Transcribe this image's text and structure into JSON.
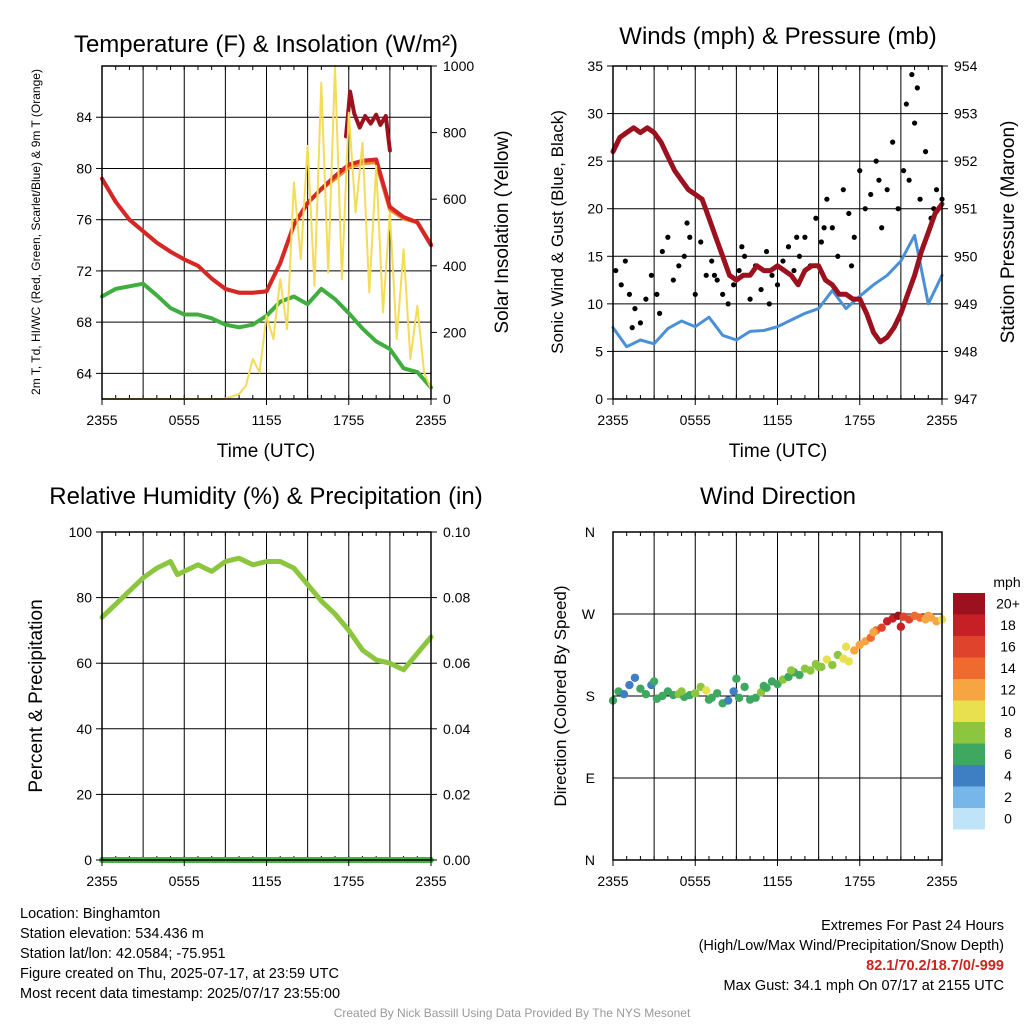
{
  "chart_data": [
    {
      "id": "temp",
      "type": "line",
      "title": "Temperature (F) & Insolation (W/m²)",
      "xlabel": "Time (UTC)",
      "ylabel": "2m T, Td, HI/WC (Red, Green, Scarlet/Blue) & 9m T (Orange)",
      "ylabel2": "Solar Insolation (Yellow)",
      "x_ticks": [
        "2355",
        "0555",
        "1155",
        "1755",
        "2355"
      ],
      "xlim": [
        0,
        24
      ],
      "ylim": [
        62,
        88
      ],
      "y_ticks": [
        64,
        68,
        72,
        76,
        80,
        84
      ],
      "ylim2": [
        0,
        1000
      ],
      "y2_ticks": [
        0,
        200,
        400,
        600,
        800,
        1000
      ],
      "grid": true,
      "series": [
        {
          "color": "#f28c28",
          "width": 4,
          "x": [
            0,
            1,
            2,
            3,
            4,
            5,
            6,
            7,
            8,
            9,
            10,
            11,
            12,
            13,
            14,
            15,
            16,
            17,
            18,
            19,
            20,
            21,
            22,
            23,
            24
          ],
          "y": [
            79.2,
            77.4,
            76,
            75.1,
            74.2,
            73.5,
            72.9,
            72.4,
            71.4,
            70.6,
            70.3,
            70.3,
            70.4,
            72.6,
            75.6,
            77.3,
            78.4,
            79.2,
            80.1,
            80.4,
            80.5,
            76.8,
            76.1,
            75.8,
            74.1
          ]
        },
        {
          "color": "#d62728",
          "width": 4,
          "x": [
            0,
            1,
            2,
            3,
            4,
            5,
            6,
            7,
            8,
            9,
            10,
            11,
            12,
            13,
            14,
            15,
            16,
            17,
            18,
            19,
            20,
            21,
            22,
            23,
            24
          ],
          "y": [
            79.2,
            77.4,
            76,
            75.1,
            74.2,
            73.5,
            72.9,
            72.4,
            71.4,
            70.6,
            70.3,
            70.3,
            70.4,
            72.6,
            75.6,
            77.3,
            78.4,
            79.4,
            80.3,
            80.6,
            80.7,
            77,
            76.2,
            75.8,
            74
          ]
        },
        {
          "color": "#9b111e",
          "width": 4,
          "x": [
            17.8,
            18.1,
            18.4,
            18.8,
            19.2,
            19.6,
            20,
            20.3,
            20.7,
            21
          ],
          "y": [
            82.5,
            86,
            84.3,
            83.2,
            84.1,
            83.5,
            84.2,
            83.4,
            84.1,
            81.4
          ]
        },
        {
          "color": "#3fae3f",
          "width": 4,
          "x": [
            0,
            1,
            2,
            3,
            4,
            5,
            6,
            7,
            8,
            9,
            10,
            11,
            12,
            13,
            14,
            15,
            16,
            17,
            18,
            19,
            20,
            21,
            22,
            23,
            24
          ],
          "y": [
            70,
            70.6,
            70.8,
            71,
            70.1,
            69.1,
            68.6,
            68.6,
            68.3,
            67.8,
            67.6,
            67.8,
            68.5,
            69.6,
            70,
            69.4,
            70.6,
            69.8,
            68.7,
            67.5,
            66.5,
            65.9,
            64.4,
            64.1,
            62.9
          ]
        },
        {
          "color": "#f3dc58",
          "width": 2,
          "axis": "right",
          "x": [
            0,
            4,
            8.8,
            9.3,
            10,
            10.5,
            11,
            11.5,
            12,
            12.5,
            13,
            13.5,
            14,
            14.5,
            15,
            15.5,
            16,
            16.5,
            17,
            17.5,
            18,
            18.5,
            19,
            19.5,
            20,
            20.5,
            21,
            21.5,
            22,
            22.5,
            23,
            23.5,
            24
          ],
          "y": [
            0,
            0,
            0,
            5,
            15,
            40,
            120,
            80,
            250,
            180,
            360,
            210,
            650,
            420,
            760,
            340,
            950,
            380,
            1000,
            360,
            860,
            560,
            770,
            320,
            700,
            260,
            560,
            180,
            450,
            120,
            280,
            80,
            30
          ]
        }
      ]
    },
    {
      "id": "wind",
      "type": "line",
      "title": "Winds (mph) & Pressure (mb)",
      "xlabel": "Time (UTC)",
      "ylabel": "Sonic Wind & Gust (Blue, Black)",
      "ylabel2": "Station Pressure (Maroon)",
      "x_ticks": [
        "2355",
        "0555",
        "1155",
        "1755",
        "2355"
      ],
      "xlim": [
        0,
        24
      ],
      "ylim": [
        0,
        35
      ],
      "y_ticks": [
        0,
        5,
        10,
        15,
        20,
        25,
        30,
        35
      ],
      "ylim2": [
        947,
        954
      ],
      "y2_ticks": [
        947,
        948,
        949,
        950,
        951,
        952,
        953,
        954
      ],
      "grid": true,
      "series": [
        {
          "color": "#4a90d9",
          "width": 3,
          "x": [
            0,
            1,
            2,
            3,
            4,
            5,
            6,
            7,
            8,
            9,
            10,
            11,
            12,
            13,
            14,
            15,
            16,
            17,
            18,
            19,
            20,
            21,
            22,
            23,
            24
          ],
          "y": [
            7.5,
            5.5,
            6.2,
            5.8,
            7.4,
            8.2,
            7.6,
            8.6,
            6.7,
            6.2,
            7.1,
            7.2,
            7.6,
            8.3,
            9,
            9.5,
            11.4,
            9.5,
            10.8,
            12,
            13,
            14.5,
            17.2,
            10,
            13
          ]
        },
        {
          "color": "#000000",
          "type": "scatter",
          "r": 2.6,
          "x": [
            0.2,
            0.6,
            0.9,
            1.2,
            1.6,
            2,
            2.4,
            2.8,
            3.2,
            3.6,
            4,
            4.4,
            4.8,
            5.2,
            5.6,
            6,
            6.4,
            6.8,
            7.2,
            7.6,
            8,
            8.4,
            8.8,
            9.2,
            9.6,
            10,
            10.4,
            10.8,
            11.2,
            11.6,
            12,
            12.4,
            12.8,
            13.2,
            13.6,
            14,
            14.4,
            14.8,
            15.2,
            15.6,
            16,
            16.4,
            16.8,
            17.2,
            17.6,
            18,
            18.4,
            18.8,
            19.2,
            19.6,
            20,
            20.4,
            20.8,
            21.2,
            21.6,
            22,
            22.4,
            22.8,
            23.2,
            23.6,
            24,
            1.4,
            3.4,
            5.4,
            7.4,
            9.4,
            11.4,
            13.4,
            15.4,
            17.4,
            19.4,
            21.4,
            23.4,
            21.8,
            22.2
          ],
          "y": [
            13.5,
            12,
            14.5,
            11,
            9.5,
            8,
            10.5,
            13,
            11,
            15.5,
            17,
            12.5,
            14,
            15,
            17,
            11,
            16.5,
            13,
            14.5,
            12.5,
            11,
            10,
            12,
            13.5,
            15,
            10.5,
            14,
            11.5,
            15.5,
            13,
            12,
            14.5,
            16,
            13.5,
            15,
            17,
            14,
            19,
            16.5,
            21,
            18,
            15,
            22,
            19.5,
            17,
            24,
            20,
            21.5,
            25,
            18,
            22,
            27,
            20,
            24,
            23,
            29,
            21,
            26,
            19,
            22,
            21,
            7.5,
            9,
            18.5,
            13,
            16,
            10,
            17,
            18,
            14,
            23,
            31,
            20,
            34.1,
            32.7
          ]
        },
        {
          "color": "#9b111e",
          "width": 5,
          "axis": "right",
          "x": [
            0,
            0.5,
            1,
            1.5,
            2,
            2.5,
            3,
            3.5,
            4,
            4.5,
            5,
            5.5,
            6,
            6.5,
            7,
            7.5,
            8,
            8.5,
            9,
            9.5,
            10,
            10.5,
            11,
            11.5,
            12,
            12.5,
            13,
            13.5,
            14,
            14.5,
            15,
            15.5,
            16,
            16.5,
            17,
            17.5,
            18,
            18.5,
            19,
            19.5,
            20,
            20.5,
            21,
            21.5,
            22,
            22.5,
            23,
            23.5,
            24
          ],
          "y": [
            952.2,
            952.5,
            952.6,
            952.7,
            952.6,
            952.7,
            952.6,
            952.4,
            952.1,
            951.8,
            951.6,
            951.4,
            951.3,
            951.2,
            950.8,
            950.4,
            950,
            949.6,
            949.5,
            949.6,
            949.6,
            949.8,
            949.7,
            949.7,
            949.8,
            949.7,
            949.6,
            949.4,
            949.7,
            949.8,
            949.8,
            949.5,
            949.4,
            949.2,
            949.2,
            949.1,
            949.1,
            948.8,
            948.4,
            948.2,
            948.3,
            948.5,
            948.8,
            949.2,
            949.6,
            950.1,
            950.5,
            950.9,
            951.1
          ]
        }
      ]
    },
    {
      "id": "rh",
      "type": "line",
      "title": "Relative Humidity (%) & Precipitation (in)",
      "xlabel": "",
      "ylabel": "Percent & Precipitation",
      "x_ticks": [
        "2355",
        "0555",
        "1155",
        "1755",
        "2355"
      ],
      "xlim": [
        0,
        24
      ],
      "ylim": [
        0,
        100
      ],
      "y_ticks": [
        0,
        20,
        40,
        60,
        80,
        100
      ],
      "ylim2": [
        0,
        0.1
      ],
      "y2_ticks": [
        "0.00",
        "0.02",
        "0.04",
        "0.06",
        "0.08",
        "0.10"
      ],
      "grid": true,
      "series": [
        {
          "color": "#8cc63f",
          "width": 5,
          "x": [
            0,
            1,
            2,
            3,
            4,
            5,
            5.5,
            6,
            7,
            8,
            9,
            10,
            11,
            12,
            13,
            14,
            15,
            16,
            17,
            18,
            19,
            20,
            21,
            22,
            23,
            24
          ],
          "y": [
            74,
            78,
            82,
            86,
            89,
            91,
            87,
            88,
            90,
            88,
            91,
            92,
            90,
            91,
            91,
            89,
            84,
            79,
            75,
            70,
            64,
            61,
            60,
            58,
            63,
            68
          ]
        },
        {
          "color": "#2e8b2e",
          "width": 5,
          "axis": "right",
          "x": [
            0,
            24
          ],
          "y": [
            0,
            0
          ]
        },
        {
          "color": "#47b047",
          "width": 6,
          "x": [
            0,
            24
          ],
          "y": [
            0,
            0
          ]
        }
      ]
    },
    {
      "id": "wdir",
      "type": "scatter",
      "title": "Wind Direction",
      "xlabel": "",
      "ylabel": "Direction (Colored By Speed)",
      "x_ticks": [
        "2355",
        "0555",
        "1155",
        "1755",
        "2355"
      ],
      "xlim": [
        0,
        24
      ],
      "y_tick_labels": [
        "N",
        "E",
        "S",
        "W",
        "N"
      ],
      "ylim": [
        0,
        360
      ],
      "legend_title": "mph",
      "legend_labels": [
        "20+",
        "18",
        "16",
        "14",
        "12",
        "10",
        "8",
        "6",
        "4",
        "2",
        "0"
      ],
      "legend_colors": [
        "#9b111e",
        "#c62026",
        "#e0432b",
        "#ef6a2e",
        "#f7a542",
        "#e8e04f",
        "#8cc63f",
        "#3fa860",
        "#3d7fc2",
        "#76b6e8",
        "#bfe3f7"
      ],
      "points": {
        "x": [
          0,
          0.4,
          0.8,
          1.2,
          1.6,
          2,
          2.4,
          2.8,
          3.2,
          3.6,
          4,
          4.4,
          4.8,
          5.2,
          5.6,
          6,
          6.4,
          6.8,
          7.2,
          7.6,
          8,
          8.4,
          8.8,
          9.2,
          9.6,
          10,
          10.4,
          10.8,
          11.2,
          11.6,
          12,
          12.4,
          12.8,
          13.2,
          13.6,
          14,
          14.4,
          14.8,
          15.2,
          15.6,
          16,
          16.4,
          16.8,
          17.2,
          17.6,
          18,
          18.4,
          18.8,
          19.2,
          19.6,
          20,
          20.4,
          20.8,
          21.2,
          21.6,
          22,
          22.4,
          22.8,
          23.2,
          23.6,
          24,
          3,
          5,
          7,
          9,
          11,
          13,
          15,
          17,
          19,
          21,
          23
        ],
        "y": [
          175,
          185,
          182,
          192,
          200,
          188,
          182,
          192,
          177,
          180,
          185,
          181,
          182,
          179,
          181,
          183,
          190,
          186,
          178,
          183,
          172,
          175,
          185,
          178,
          190,
          176,
          178,
          184,
          189,
          196,
          193,
          198,
          201,
          206,
          203,
          210,
          208,
          215,
          212,
          220,
          214,
          225,
          221,
          218,
          230,
          236,
          240,
          244,
          252,
          255,
          262,
          265,
          268,
          267,
          264,
          268,
          266,
          264,
          266,
          262,
          264,
          196,
          185,
          176,
          199,
          191,
          208,
          212,
          234,
          250,
          256,
          268
        ],
        "speed": [
          6,
          6,
          5,
          4,
          4,
          6,
          7,
          5,
          6,
          7,
          7,
          7,
          8,
          7,
          7,
          8,
          9,
          10,
          7,
          6,
          6,
          4,
          5,
          6,
          7,
          6,
          7,
          8,
          7,
          6,
          7,
          8,
          7,
          7,
          7,
          8,
          8,
          9,
          9,
          10,
          8,
          9,
          11,
          10,
          12,
          12,
          13,
          14,
          15,
          17,
          18,
          19,
          20,
          17,
          16,
          15,
          14,
          13,
          12,
          12,
          11,
          7,
          8,
          6,
          7,
          7,
          8,
          9,
          10,
          13,
          18,
          12
        ]
      }
    }
  ],
  "info": {
    "location": "Location: Binghamton",
    "elevation": "Station elevation: 534.436 m",
    "latlon": "Station lat/lon: 42.0584; -75.951",
    "created": "Figure created on Thu, 2025-07-17, at 23:59 UTC",
    "recent": "Most recent data timestamp: 2025/07/17 23:55:00",
    "extremes_title": "Extremes For Past 24 Hours",
    "extremes_sub": "(High/Low/Max Wind/Precipitation/Snow Depth)",
    "extremes_values": "82.1/70.2/18.7/0/-999",
    "max_gust": "Max Gust: 34.1 mph On 07/17 at 2155 UTC",
    "credit": "Created By Nick Bassill Using Data Provided By The NYS Mesonet"
  }
}
